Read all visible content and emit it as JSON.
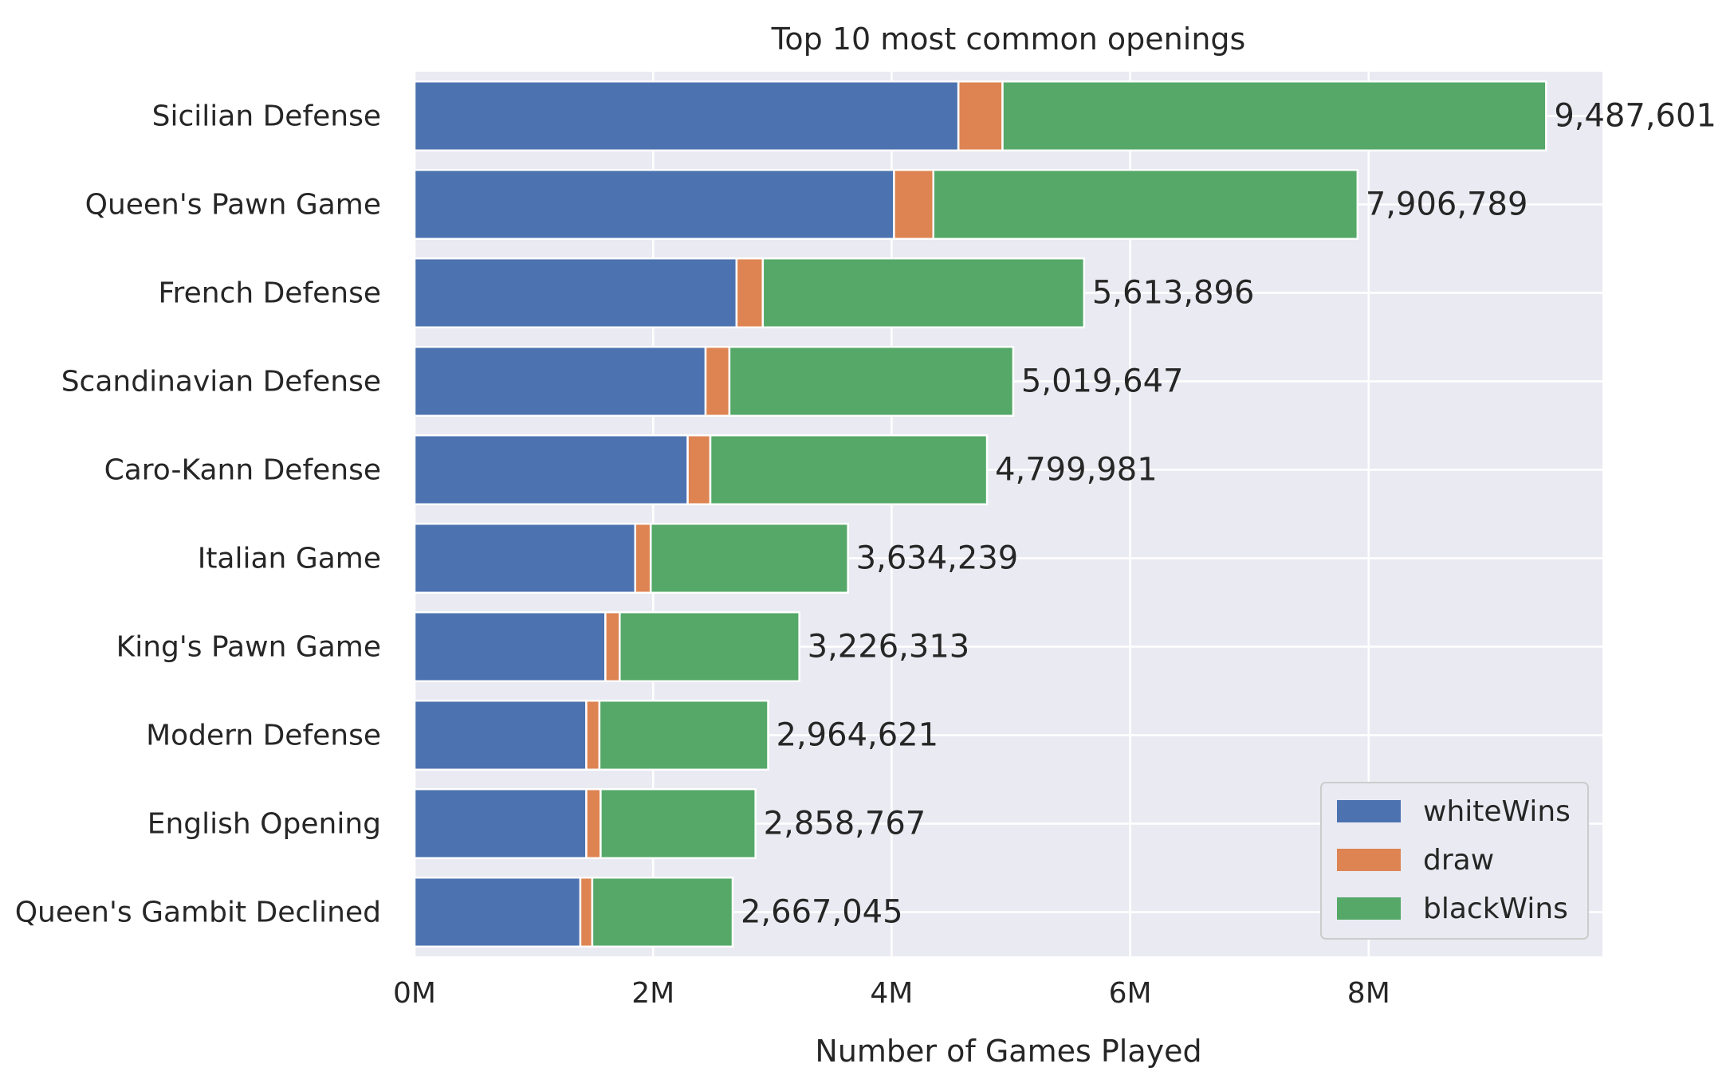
{
  "chart_data": {
    "type": "bar",
    "orientation": "horizontal",
    "stacked": true,
    "title": "Top 10 most common openings",
    "xlabel": "Number of Games Played",
    "ylabel": "",
    "xlim": [
      0,
      9960000
    ],
    "x_ticks": [
      0,
      2000000,
      4000000,
      6000000,
      8000000
    ],
    "x_tick_labels": [
      "0M",
      "2M",
      "4M",
      "6M",
      "8M"
    ],
    "grid": true,
    "legend_position": "bottom-right",
    "categories": [
      "Sicilian Defense",
      "Queen's Pawn Game",
      "French Defense",
      "Scandinavian Defense",
      "Caro-Kann Defense",
      "Italian Game",
      "King's Pawn Game",
      "Modern Defense",
      "English Opening",
      "Queen's Gambit Declined"
    ],
    "series": [
      {
        "name": "whiteWins",
        "color": "#4c72b0",
        "values": [
          4560000,
          4020000,
          2700000,
          2440000,
          2290000,
          1850000,
          1600000,
          1440000,
          1440000,
          1390000
        ]
      },
      {
        "name": "draw",
        "color": "#dd8452",
        "values": [
          370000,
          330000,
          220000,
          200000,
          190000,
          130000,
          120000,
          110000,
          120000,
          100000
        ]
      },
      {
        "name": "blackWins",
        "color": "#55a868",
        "values": [
          4557601,
          3556789,
          2693896,
          2379647,
          2319981,
          1654239,
          1506313,
          1414621,
          1298767,
          1177045
        ]
      }
    ],
    "total_labels": [
      "9,487,601",
      "7,906,789",
      "5,613,896",
      "5,019,647",
      "4,799,981",
      "3,634,239",
      "3,226,313",
      "2,964,621",
      "2,858,767",
      "2,667,045"
    ]
  }
}
